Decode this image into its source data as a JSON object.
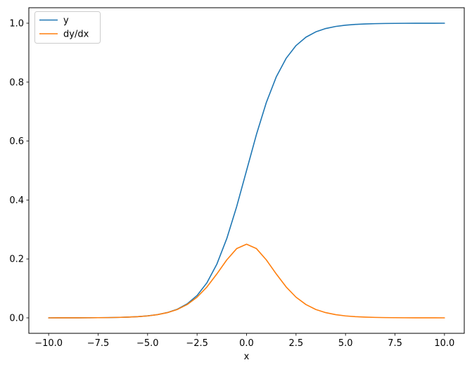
{
  "figure": {
    "background": "#ffffff",
    "frame_color": "#000000"
  },
  "legend": {
    "position": "upper left",
    "border_color": "#cccccc",
    "background": "#ffffff",
    "entries": [
      {
        "label": "y",
        "color": "#1f77b4"
      },
      {
        "label": "dy/dx",
        "color": "#ff7f0e"
      }
    ]
  },
  "chart_data": {
    "type": "line",
    "title": "",
    "xlabel": "x",
    "ylabel": "",
    "grid": false,
    "legend_position": "upper left",
    "xlim": [
      -11,
      11
    ],
    "ylim": [
      -0.0525,
      1.0525
    ],
    "x_ticks": [
      {
        "value": -10,
        "label": "−10.0"
      },
      {
        "value": -7.5,
        "label": "−7.5"
      },
      {
        "value": -5,
        "label": "−5.0"
      },
      {
        "value": -2.5,
        "label": "−2.5"
      },
      {
        "value": 0,
        "label": "0.0"
      },
      {
        "value": 2.5,
        "label": "2.5"
      },
      {
        "value": 5,
        "label": "5.0"
      },
      {
        "value": 7.5,
        "label": "7.5"
      },
      {
        "value": 10,
        "label": "10.0"
      }
    ],
    "y_ticks": [
      {
        "value": 0.0,
        "label": "0.0"
      },
      {
        "value": 0.2,
        "label": "0.2"
      },
      {
        "value": 0.4,
        "label": "0.4"
      },
      {
        "value": 0.6,
        "label": "0.6"
      },
      {
        "value": 0.8,
        "label": "0.8"
      },
      {
        "value": 1.0,
        "label": "1.0"
      }
    ],
    "x": [
      -10,
      -9.5,
      -9,
      -8.5,
      -8,
      -7.5,
      -7,
      -6.5,
      -6,
      -5.5,
      -5,
      -4.5,
      -4,
      -3.5,
      -3,
      -2.5,
      -2,
      -1.5,
      -1,
      -0.5,
      0,
      0.5,
      1,
      1.5,
      2,
      2.5,
      3,
      3.5,
      4,
      4.5,
      5,
      5.5,
      6,
      6.5,
      7,
      7.5,
      8,
      8.5,
      9,
      9.5,
      10
    ],
    "series": [
      {
        "name": "y",
        "color": "#1f77b4",
        "values": [
          0.0,
          0.0001,
          0.0001,
          0.0002,
          0.0003,
          0.0006,
          0.0009,
          0.0015,
          0.0025,
          0.0041,
          0.0067,
          0.011,
          0.018,
          0.0293,
          0.0474,
          0.0759,
          0.1192,
          0.1824,
          0.2689,
          0.3775,
          0.5,
          0.6225,
          0.7311,
          0.8176,
          0.8808,
          0.9241,
          0.9526,
          0.9707,
          0.982,
          0.989,
          0.9933,
          0.9959,
          0.9975,
          0.9985,
          0.9991,
          0.9994,
          0.9997,
          0.9998,
          0.9999,
          0.9999,
          1.0
        ]
      },
      {
        "name": "dy/dx",
        "color": "#ff7f0e",
        "values": [
          0.0,
          0.0001,
          0.0001,
          0.0002,
          0.0003,
          0.0006,
          0.0009,
          0.0015,
          0.0025,
          0.0041,
          0.0066,
          0.0109,
          0.0177,
          0.0284,
          0.0452,
          0.0701,
          0.105,
          0.1491,
          0.1966,
          0.235,
          0.25,
          0.235,
          0.1966,
          0.1491,
          0.105,
          0.0701,
          0.0452,
          0.0284,
          0.0177,
          0.0109,
          0.0066,
          0.0041,
          0.0025,
          0.0015,
          0.0009,
          0.0006,
          0.0003,
          0.0002,
          0.0001,
          0.0001,
          0.0
        ]
      }
    ]
  }
}
